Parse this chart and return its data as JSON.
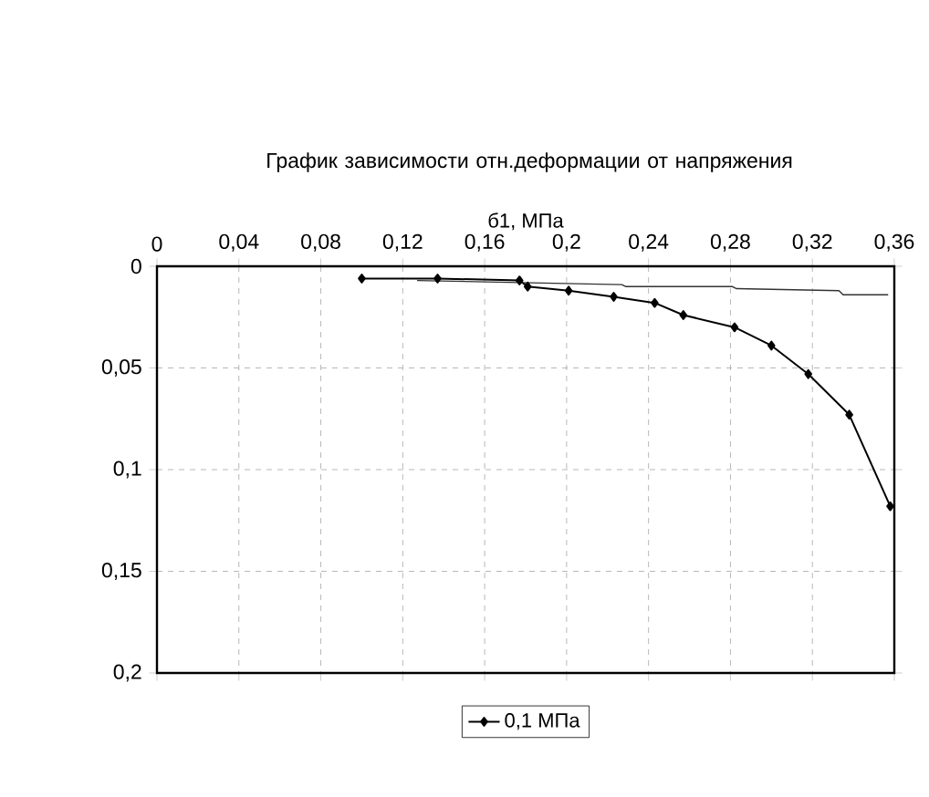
{
  "chart_data": {
    "type": "line",
    "title": "График зависимости отн.деформации от напряжения",
    "xlabel": "б1, МПа",
    "xlim": [
      0,
      0.36
    ],
    "xticks": [
      0,
      {
        "value": 0.04,
        "label": "0,04"
      },
      {
        "value": 0.08,
        "label": "0,08"
      },
      {
        "value": 0.12,
        "label": "0,12"
      },
      {
        "value": 0.16,
        "label": "0,16"
      },
      {
        "value": 0.2,
        "label": "0,2"
      },
      {
        "value": 0.24,
        "label": "0,24"
      },
      {
        "value": 0.28,
        "label": "0,28"
      },
      {
        "value": 0.32,
        "label": "0,32"
      },
      {
        "value": 0.36,
        "label": "0,36"
      }
    ],
    "ylim": [
      0.2,
      0
    ],
    "yticks": [
      0,
      {
        "value": 0.05,
        "label": "0,05"
      },
      {
        "value": 0.1,
        "label": "0,1"
      },
      {
        "value": 0.15,
        "label": "0,15"
      },
      {
        "value": 0.2,
        "label": "0,2"
      }
    ],
    "grid": true,
    "legend": "bottom",
    "series": [
      {
        "name": "0,1 МПа",
        "color": "#000000",
        "marker": "diamond",
        "x": [
          0.1,
          0.137,
          0.177,
          0.181,
          0.201,
          0.223,
          0.243,
          0.257,
          0.282,
          0.3,
          0.318,
          0.338,
          0.358
        ],
        "values": [
          0.006,
          0.006,
          0.007,
          0.01,
          0.012,
          0.015,
          0.018,
          0.024,
          0.03,
          0.039,
          0.053,
          0.073,
          0.118
        ]
      },
      {
        "color": "#333333",
        "marker": "none",
        "x": [
          0.127,
          0.177,
          0.227,
          0.229,
          0.281,
          0.283,
          0.333,
          0.335,
          0.357
        ],
        "values": [
          0.007,
          0.008,
          0.009,
          0.01,
          0.01,
          0.011,
          0.012,
          0.014,
          0.014
        ]
      }
    ]
  }
}
